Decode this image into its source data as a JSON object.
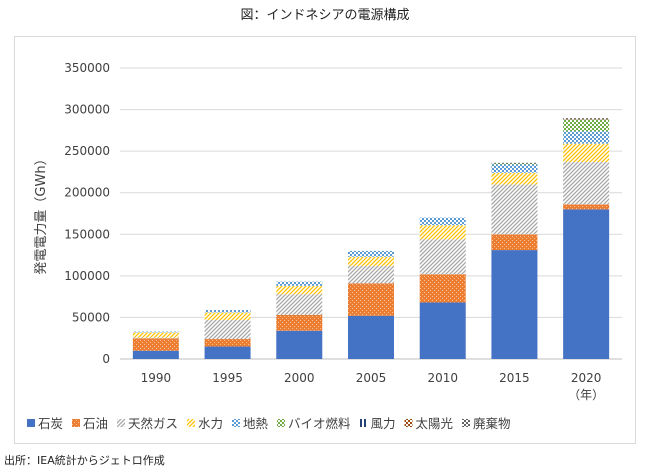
{
  "title": "図：インドネシアの電源構成",
  "source": "出所：IEA統計からジェトロ作成",
  "chart_data": {
    "type": "bar",
    "stacked": true,
    "title": "図：インドネシアの電源構成",
    "ylabel": "発電電力量（GWh）",
    "xlabel": "（年）",
    "ylim": [
      0,
      350000
    ],
    "yticks": [
      0,
      50000,
      100000,
      150000,
      200000,
      250000,
      300000,
      350000
    ],
    "categories": [
      "1990",
      "1995",
      "2000",
      "2005",
      "2010",
      "2015",
      "2020"
    ],
    "series": [
      {
        "name": "石炭",
        "color": "#4472c4",
        "pattern": "solid",
        "values": [
          10000,
          15000,
          34000,
          52000,
          68000,
          131000,
          180000
        ]
      },
      {
        "name": "石油",
        "color": "#ed7d31",
        "pattern": "dots",
        "values": [
          15000,
          9000,
          19000,
          39000,
          34000,
          19000,
          6000
        ]
      },
      {
        "name": "天然ガス",
        "color": "#a5a5a5",
        "pattern": "hatch",
        "values": [
          1000,
          23000,
          25000,
          21000,
          42000,
          60000,
          51000
        ]
      },
      {
        "name": "水力",
        "color": "#ffc000",
        "pattern": "hatch",
        "values": [
          6000,
          9000,
          10000,
          11000,
          17000,
          14000,
          22000
        ]
      },
      {
        "name": "地熱",
        "color": "#5b9bd5",
        "pattern": "check",
        "values": [
          1000,
          3000,
          5000,
          7000,
          9000,
          10000,
          15000
        ]
      },
      {
        "name": "バイオ燃料",
        "color": "#70ad47",
        "pattern": "check",
        "values": [
          0,
          0,
          0,
          0,
          0,
          1000,
          14000
        ]
      },
      {
        "name": "風力",
        "color": "#264478",
        "pattern": "vert",
        "values": [
          0,
          0,
          0,
          0,
          0,
          0,
          400
        ]
      },
      {
        "name": "太陽光",
        "color": "#9e480e",
        "pattern": "check",
        "values": [
          0,
          0,
          0,
          0,
          0,
          0,
          300
        ]
      },
      {
        "name": "廃棄物",
        "color": "#636363",
        "pattern": "check",
        "values": [
          0,
          0,
          0,
          0,
          0,
          1000,
          1000
        ]
      }
    ],
    "legend": "bottom",
    "grid": true
  }
}
